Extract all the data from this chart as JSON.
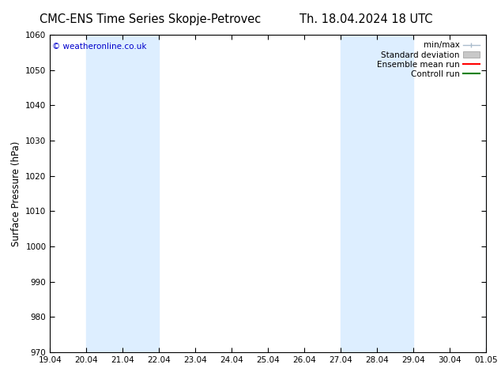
{
  "title_left": "CMC-ENS Time Series Skopje-Petrovec",
  "title_right": "Th. 18.04.2024 18 UTC",
  "ylabel": "Surface Pressure (hPa)",
  "ylim": [
    970,
    1060
  ],
  "yticks": [
    970,
    980,
    990,
    1000,
    1010,
    1020,
    1030,
    1040,
    1050,
    1060
  ],
  "xtick_labels": [
    "19.04",
    "20.04",
    "21.04",
    "22.04",
    "23.04",
    "24.04",
    "25.04",
    "26.04",
    "27.04",
    "28.04",
    "29.04",
    "30.04",
    "01.05"
  ],
  "bg_color": "#ffffff",
  "band_color": "#ddeeff",
  "bands": [
    {
      "start": 1,
      "end": 2
    },
    {
      "start": 2,
      "end": 3
    },
    {
      "start": 8,
      "end": 9
    },
    {
      "start": 9,
      "end": 10
    },
    {
      "start": 12,
      "end": 13
    }
  ],
  "copyright_text": "© weatheronline.co.uk",
  "copyright_color": "#0000cc",
  "legend_items": [
    {
      "label": "min/max",
      "color": "#aabccc",
      "type": "errorbar"
    },
    {
      "label": "Standard deviation",
      "color": "#c8c8c8",
      "type": "bar"
    },
    {
      "label": "Ensemble mean run",
      "color": "#ff0000",
      "type": "line"
    },
    {
      "label": "Controll run",
      "color": "#008000",
      "type": "line"
    }
  ],
  "title_fontsize": 10.5,
  "axis_label_fontsize": 8.5,
  "tick_fontsize": 7.5,
  "legend_fontsize": 7.5
}
